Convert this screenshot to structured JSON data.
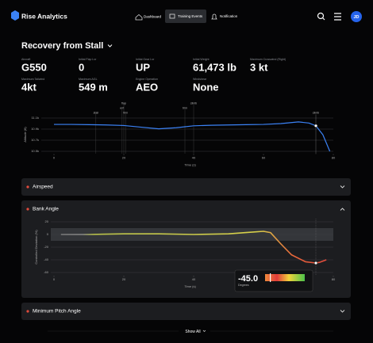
{
  "header": {
    "brand": "Rise Analytics",
    "nav": [
      "Dashboard",
      "Training Events",
      "Notification"
    ],
    "avatar": "JD"
  },
  "title": "Recovery from Stall",
  "stats": [
    {
      "label": "Aircraft",
      "value": "G550"
    },
    {
      "label": "Initial Flap Lvr",
      "value": "0"
    },
    {
      "label": "Initial Gear Lvr",
      "value": "UP"
    },
    {
      "label": "Initial Weight",
      "value": "61,473 lb"
    },
    {
      "label": "Maximum Crosswind (Right)",
      "value": "3 kt"
    },
    {
      "label": "Maximum Tailwind",
      "value": "4kt"
    },
    {
      "label": "Maximum AGL",
      "value": "549 m"
    },
    {
      "label": "Engine Operation",
      "value": "AEO"
    },
    {
      "label": "Windshear",
      "value": "None"
    }
  ],
  "altitude_chart": {
    "type": "line",
    "ylabel": "Altitude (ft)",
    "xlabel": "Time (s)",
    "color": "#3b82f6",
    "xlim": [
      -4,
      82
    ],
    "xticks": [
      0,
      20,
      40,
      60,
      80
    ],
    "ylim": [
      10450,
      11150
    ],
    "yticks": [
      {
        "value": 11100,
        "label": "11.1k"
      },
      {
        "value": 10900,
        "label": "10.9k"
      },
      {
        "value": 10700,
        "label": "10.7k"
      },
      {
        "value": 10500,
        "label": "10.5k"
      }
    ],
    "x": [
      0,
      5,
      10,
      15,
      20,
      25,
      30,
      35,
      40,
      45,
      50,
      55,
      60,
      65,
      70,
      73,
      75,
      77,
      79
    ],
    "values": [
      10985,
      10985,
      10980,
      10975,
      10965,
      10935,
      10905,
      10925,
      10960,
      10970,
      10975,
      10980,
      10985,
      11000,
      11030,
      11010,
      10960,
      10800,
      10500
    ],
    "marker": {
      "x": 75,
      "value": 10960
    },
    "events": [
      {
        "label": "stall",
        "x": 12
      },
      {
        "label": "ent",
        "x": 19.5
      },
      {
        "label": "flap",
        "x": 20
      },
      {
        "label": "trim",
        "x": 20.5
      },
      {
        "label": "trim",
        "x": 37.5
      },
      {
        "label": "climb",
        "x": 40
      },
      {
        "label": "climb",
        "x": 75
      }
    ]
  },
  "sections": [
    "Airspeed",
    "Bank Angle",
    "Minimum Pitch Angle"
  ],
  "bank_chart": {
    "type": "line",
    "ylabel": "Controlled Deviation (%)",
    "xlabel": "Time (s)",
    "xlim": [
      -4,
      82
    ],
    "xticks": [
      0,
      20,
      40,
      60,
      80
    ],
    "ylim": [
      -65,
      25
    ],
    "yticks": [
      20,
      0,
      -20,
      -40,
      -60
    ],
    "band": [
      -10,
      10
    ],
    "x": [
      2,
      6,
      10,
      20,
      30,
      40,
      50,
      55,
      60,
      62,
      65,
      68,
      72,
      75,
      76,
      78
    ],
    "values": [
      0,
      0,
      0,
      1,
      1,
      0,
      1,
      3,
      5,
      3,
      -15,
      -32,
      -43,
      -45,
      -44,
      -40
    ],
    "marker": {
      "x": 75,
      "value": -45,
      "value_label": "-45.0",
      "caption": "Degrees"
    }
  },
  "show_all": "Show All"
}
